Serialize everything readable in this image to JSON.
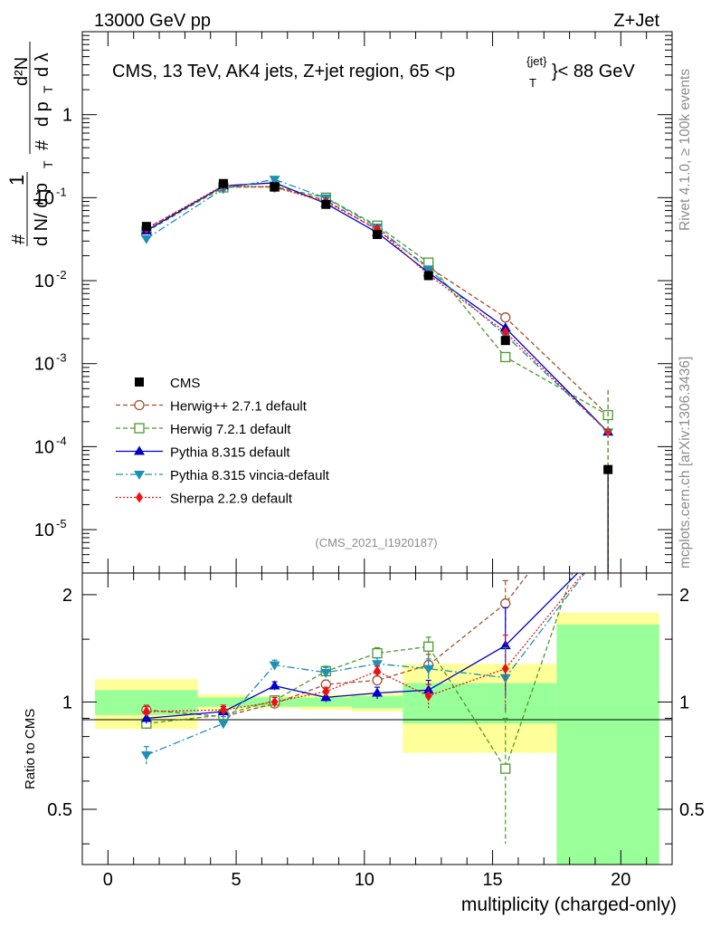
{
  "header": {
    "left": "13000 GeV pp",
    "right": "Z+Jet"
  },
  "side": {
    "rivet": "Rivet 4.1.0, ≥ 100k events",
    "mcplots": "mcplots.cern.ch [arXiv:1306.3436]"
  },
  "chart_data": {
    "type": "line",
    "title": "CMS, 13 TeV, AK4 jets, Z+jet region, 65 <p_T^{jet}< 88 GeV",
    "title_main": "CMS, 13 TeV, AK4 jets, Z+jet region, 65 <p",
    "title_sup": "{jet}",
    "title_sub": "T",
    "title_tail": "}< 88 GeV",
    "watermark": "(CMS_2021_I1920187)",
    "ylabel": "1/dN/dp_T d²N/dp_T dλ",
    "ylabel_parts": {
      "one": "1",
      "hash": "#",
      "dN": "d N/ d p",
      "T": "T",
      "d2N": "d²N",
      "dpT": "d p",
      "dl": "d λ"
    },
    "xlabel": "multiplicity (charged-only)",
    "ratio_ylabel": "Ratio to CMS",
    "xlim": [
      -1,
      22
    ],
    "ylim": [
      3e-06,
      10
    ],
    "ratio_ylim": [
      0.35,
      2.3
    ],
    "x_ticks": [
      0,
      5,
      10,
      15,
      20
    ],
    "x_tick_labels": [
      "0",
      "5",
      "10",
      "15",
      "20"
    ],
    "y_ticks": [
      1e-05,
      0.0001,
      0.001,
      0.01,
      0.1,
      1
    ],
    "y_tick_labels": [
      {
        "base": "10",
        "exp": "-5"
      },
      {
        "base": "10",
        "exp": "-4"
      },
      {
        "base": "10",
        "exp": "-3"
      },
      {
        "base": "10",
        "exp": "-2"
      },
      {
        "base": "10",
        "exp": "-1"
      },
      {
        "base": "1",
        "exp": ""
      }
    ],
    "ratio_ticks": [
      0.5,
      1,
      2
    ],
    "ratio_tick_labels": [
      "0.5",
      "1",
      "2"
    ],
    "bins": [
      [
        -0.5,
        3.5
      ],
      [
        3.5,
        5.5
      ],
      [
        5.5,
        7.5
      ],
      [
        7.5,
        9.5
      ],
      [
        9.5,
        11.5
      ],
      [
        11.5,
        13.5
      ],
      [
        13.5,
        17.5
      ],
      [
        17.5,
        21.5
      ]
    ],
    "x": [
      1.5,
      4.5,
      6.5,
      8.5,
      10.5,
      12.5,
      15.5,
      19.5
    ],
    "data": {
      "name": "CMS",
      "values": [
        0.045,
        0.148,
        0.135,
        0.083,
        0.036,
        0.0115,
        0.0019,
        5.3e-05
      ],
      "band_stat": [
        0.08,
        0.03,
        0.03,
        0.03,
        0.04,
        0.13,
        0.13,
        0.65
      ],
      "band_total": [
        0.16,
        0.05,
        0.04,
        0.05,
        0.06,
        0.28,
        0.28,
        0.78
      ]
    },
    "series": [
      {
        "name": "Herwig++ 2.7.1 default",
        "color": "#a0522d",
        "dash": "5,3",
        "marker": "circle-open",
        "values": [
          0.0425,
          0.135,
          0.134,
          0.093,
          0.041,
          0.0146,
          0.0036,
          0.00024
        ],
        "ratio": [
          0.95,
          0.91,
          0.99,
          1.12,
          1.15,
          1.27,
          1.89,
          4.5
        ],
        "ratio_err": [
          0.03,
          0.03,
          0.03,
          0.03,
          0.05,
          0.09,
          0.3,
          0.8
        ]
      },
      {
        "name": "Herwig 7.2.1 default",
        "color": "#4c9a2a",
        "dash": "5,3",
        "marker": "square-open",
        "values": [
          0.039,
          0.133,
          0.136,
          0.1,
          0.046,
          0.0165,
          0.0012,
          0.00024
        ],
        "ratio": [
          0.87,
          0.92,
          1.01,
          1.22,
          1.37,
          1.43,
          0.65,
          4.5
        ],
        "ratio_err": [
          0.03,
          0.03,
          0.03,
          0.04,
          0.05,
          0.09,
          0.25,
          0.8
        ]
      },
      {
        "name": "Pythia 8.315 default",
        "color": "#0000cc",
        "dash": "",
        "marker": "triangle-up",
        "values": [
          0.04,
          0.139,
          0.151,
          0.085,
          0.038,
          0.0125,
          0.0027,
          0.00015
        ],
        "ratio": [
          0.9,
          0.94,
          1.11,
          1.03,
          1.06,
          1.08,
          1.44,
          2.8
        ],
        "ratio_err": [
          0.03,
          0.03,
          0.03,
          0.03,
          0.04,
          0.07,
          0.4,
          0.6
        ]
      },
      {
        "name": "Pythia 8.315 vincia-default",
        "color": "#1e8fb5",
        "dash": "8,3,2,3",
        "marker": "triangle-down",
        "values": [
          0.032,
          0.128,
          0.166,
          0.099,
          0.044,
          0.0138,
          0.0022,
          0.00015
        ],
        "ratio": [
          0.71,
          0.87,
          1.27,
          1.21,
          1.28,
          1.24,
          1.17,
          2.8
        ],
        "ratio_err": [
          0.04,
          0.04,
          0.04,
          0.04,
          0.05,
          0.08,
          0.25,
          0.6
        ]
      },
      {
        "name": "Sherpa 2.2.9 default",
        "color": "#ee1111",
        "dash": "2,2",
        "marker": "diamond",
        "values": [
          0.0425,
          0.14,
          0.134,
          0.089,
          0.042,
          0.0118,
          0.0024,
          0.00015
        ],
        "ratio": [
          0.94,
          0.95,
          1.0,
          1.07,
          1.22,
          1.04,
          1.24,
          2.8
        ],
        "ratio_err": [
          0.03,
          0.03,
          0.03,
          0.03,
          0.04,
          0.08,
          0.3,
          0.6
        ]
      }
    ]
  }
}
